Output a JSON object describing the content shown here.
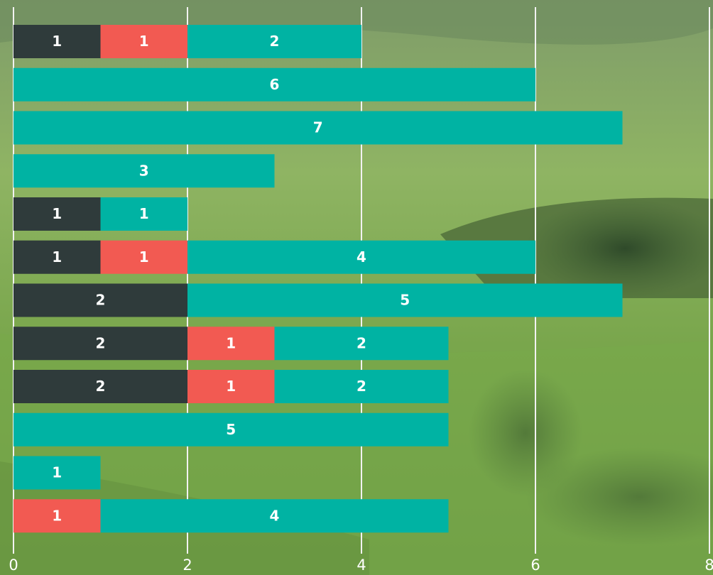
{
  "chart_data": {
    "type": "stacked-bar-horizontal",
    "series": [
      {
        "color": "#2f3b3b",
        "values": [
          1,
          null,
          null,
          null,
          1,
          1,
          2,
          2,
          2,
          null,
          null,
          null
        ]
      },
      {
        "color": "#f25a52",
        "values": [
          1,
          null,
          null,
          null,
          null,
          1,
          null,
          1,
          1,
          null,
          null,
          1
        ]
      },
      {
        "color": "#00b3a3",
        "values": [
          2,
          6,
          7,
          3,
          1,
          4,
          5,
          2,
          2,
          5,
          1,
          4
        ]
      }
    ],
    "xlim": [
      0,
      8
    ],
    "xticks": [
      0,
      2,
      4,
      6,
      8
    ],
    "grid": true
  }
}
